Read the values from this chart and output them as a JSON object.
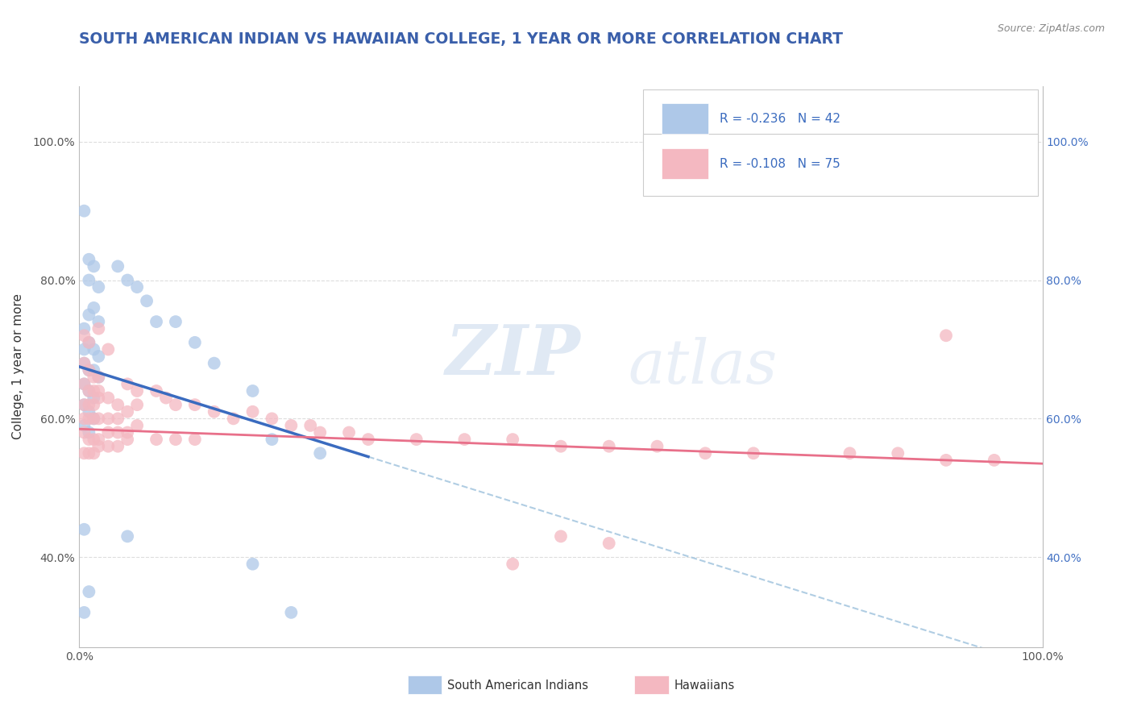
{
  "title": "SOUTH AMERICAN INDIAN VS HAWAIIAN COLLEGE, 1 YEAR OR MORE CORRELATION CHART",
  "source": "Source: ZipAtlas.com",
  "ylabel": "College, 1 year or more",
  "xlim": [
    0.0,
    1.0
  ],
  "ylim": [
    0.27,
    1.08
  ],
  "yticks": [
    0.4,
    0.6,
    0.8,
    1.0
  ],
  "ytick_labels": [
    "40.0%",
    "60.0%",
    "80.0%",
    "100.0%"
  ],
  "xticks": [
    0.0,
    1.0
  ],
  "xtick_labels": [
    "0.0%",
    "100.0%"
  ],
  "blue_R": -0.236,
  "blue_N": 42,
  "pink_R": -0.108,
  "pink_N": 75,
  "legend_label_blue": "South American Indians",
  "legend_label_pink": "Hawaiians",
  "watermark_zip": "ZIP",
  "watermark_atlas": "atlas",
  "blue_points": [
    [
      0.005,
      0.9
    ],
    [
      0.01,
      0.83
    ],
    [
      0.01,
      0.8
    ],
    [
      0.015,
      0.82
    ],
    [
      0.02,
      0.79
    ],
    [
      0.005,
      0.73
    ],
    [
      0.01,
      0.75
    ],
    [
      0.015,
      0.76
    ],
    [
      0.02,
      0.74
    ],
    [
      0.005,
      0.7
    ],
    [
      0.01,
      0.71
    ],
    [
      0.015,
      0.7
    ],
    [
      0.02,
      0.69
    ],
    [
      0.005,
      0.68
    ],
    [
      0.01,
      0.67
    ],
    [
      0.015,
      0.67
    ],
    [
      0.02,
      0.66
    ],
    [
      0.005,
      0.65
    ],
    [
      0.01,
      0.64
    ],
    [
      0.015,
      0.63
    ],
    [
      0.005,
      0.62
    ],
    [
      0.01,
      0.61
    ],
    [
      0.015,
      0.6
    ],
    [
      0.005,
      0.59
    ],
    [
      0.01,
      0.58
    ],
    [
      0.04,
      0.82
    ],
    [
      0.05,
      0.8
    ],
    [
      0.06,
      0.79
    ],
    [
      0.07,
      0.77
    ],
    [
      0.08,
      0.74
    ],
    [
      0.1,
      0.74
    ],
    [
      0.12,
      0.71
    ],
    [
      0.14,
      0.68
    ],
    [
      0.18,
      0.64
    ],
    [
      0.2,
      0.57
    ],
    [
      0.25,
      0.55
    ],
    [
      0.005,
      0.44
    ],
    [
      0.05,
      0.43
    ],
    [
      0.01,
      0.35
    ],
    [
      0.18,
      0.39
    ],
    [
      0.005,
      0.32
    ],
    [
      0.22,
      0.32
    ]
  ],
  "pink_points": [
    [
      0.005,
      0.72
    ],
    [
      0.01,
      0.71
    ],
    [
      0.02,
      0.73
    ],
    [
      0.03,
      0.7
    ],
    [
      0.005,
      0.68
    ],
    [
      0.01,
      0.67
    ],
    [
      0.015,
      0.66
    ],
    [
      0.02,
      0.66
    ],
    [
      0.005,
      0.65
    ],
    [
      0.01,
      0.64
    ],
    [
      0.015,
      0.64
    ],
    [
      0.02,
      0.64
    ],
    [
      0.005,
      0.62
    ],
    [
      0.01,
      0.62
    ],
    [
      0.015,
      0.62
    ],
    [
      0.02,
      0.63
    ],
    [
      0.03,
      0.63
    ],
    [
      0.04,
      0.62
    ],
    [
      0.05,
      0.65
    ],
    [
      0.06,
      0.64
    ],
    [
      0.005,
      0.6
    ],
    [
      0.01,
      0.6
    ],
    [
      0.015,
      0.6
    ],
    [
      0.02,
      0.6
    ],
    [
      0.03,
      0.6
    ],
    [
      0.04,
      0.6
    ],
    [
      0.05,
      0.61
    ],
    [
      0.06,
      0.62
    ],
    [
      0.005,
      0.58
    ],
    [
      0.01,
      0.57
    ],
    [
      0.015,
      0.57
    ],
    [
      0.02,
      0.57
    ],
    [
      0.03,
      0.58
    ],
    [
      0.04,
      0.58
    ],
    [
      0.05,
      0.58
    ],
    [
      0.06,
      0.59
    ],
    [
      0.005,
      0.55
    ],
    [
      0.01,
      0.55
    ],
    [
      0.015,
      0.55
    ],
    [
      0.02,
      0.56
    ],
    [
      0.03,
      0.56
    ],
    [
      0.04,
      0.56
    ],
    [
      0.05,
      0.57
    ],
    [
      0.08,
      0.64
    ],
    [
      0.09,
      0.63
    ],
    [
      0.1,
      0.62
    ],
    [
      0.12,
      0.62
    ],
    [
      0.14,
      0.61
    ],
    [
      0.16,
      0.6
    ],
    [
      0.18,
      0.61
    ],
    [
      0.2,
      0.6
    ],
    [
      0.22,
      0.59
    ],
    [
      0.24,
      0.59
    ],
    [
      0.25,
      0.58
    ],
    [
      0.28,
      0.58
    ],
    [
      0.3,
      0.57
    ],
    [
      0.35,
      0.57
    ],
    [
      0.4,
      0.57
    ],
    [
      0.45,
      0.57
    ],
    [
      0.5,
      0.56
    ],
    [
      0.55,
      0.56
    ],
    [
      0.6,
      0.56
    ],
    [
      0.65,
      0.55
    ],
    [
      0.7,
      0.55
    ],
    [
      0.8,
      0.55
    ],
    [
      0.85,
      0.55
    ],
    [
      0.9,
      0.54
    ],
    [
      0.95,
      0.54
    ],
    [
      0.08,
      0.57
    ],
    [
      0.1,
      0.57
    ],
    [
      0.12,
      0.57
    ],
    [
      0.5,
      0.43
    ],
    [
      0.55,
      0.42
    ],
    [
      0.45,
      0.39
    ],
    [
      0.9,
      0.72
    ]
  ],
  "blue_color": "#aec8e8",
  "pink_color": "#f4b8c1",
  "blue_line_color": "#3a6bbf",
  "pink_line_color": "#e8708a",
  "dashed_line_color": "#a8c8e0",
  "grid_color": "#dddddd",
  "bg_color": "#ffffff",
  "title_color": "#3a5faa",
  "source_color": "#888888",
  "legend_text_color": "#3a6bbf",
  "right_tick_color": "#4472c4"
}
